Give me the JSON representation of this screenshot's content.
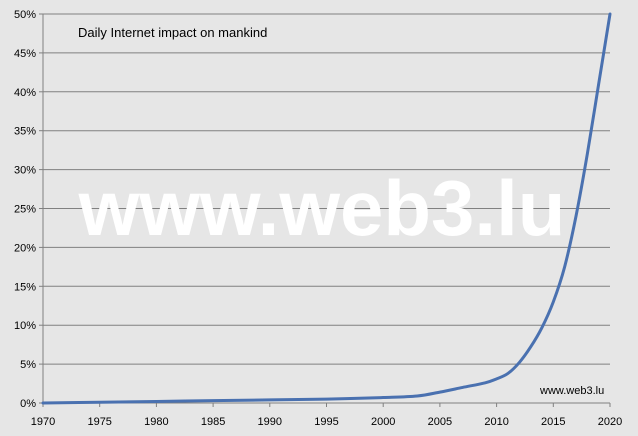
{
  "chart_data": {
    "type": "line",
    "title": "Daily Internet impact on mankind",
    "watermark": "www.web3.lu",
    "credit": "www.web3.lu",
    "xlim": [
      1970,
      2020
    ],
    "ylim": [
      0,
      50
    ],
    "x_ticks": [
      1970,
      1975,
      1980,
      1985,
      1990,
      1995,
      2000,
      2005,
      2010,
      2015,
      2020
    ],
    "y_ticks": [
      {
        "v": 0,
        "label": "0%"
      },
      {
        "v": 5,
        "label": "5%"
      },
      {
        "v": 10,
        "label": "10%"
      },
      {
        "v": 15,
        "label": "15%"
      },
      {
        "v": 20,
        "label": "20%"
      },
      {
        "v": 25,
        "label": "25%"
      },
      {
        "v": 30,
        "label": "30%"
      },
      {
        "v": 35,
        "label": "35%"
      },
      {
        "v": 40,
        "label": "40%"
      },
      {
        "v": 45,
        "label": "45%"
      },
      {
        "v": 50,
        "label": "50%"
      }
    ],
    "grid": true,
    "series": [
      {
        "color": "#4a71b0",
        "x": [
          1970,
          1975,
          1980,
          1985,
          1990,
          1995,
          2000,
          2003,
          2005,
          2007,
          2009,
          2010,
          2011,
          2012,
          2013,
          2014,
          2015,
          2016,
          2017,
          2018,
          2019,
          2020
        ],
        "values": [
          0,
          0.1,
          0.2,
          0.3,
          0.4,
          0.5,
          0.7,
          0.9,
          1.4,
          2.0,
          2.6,
          3.1,
          3.8,
          5.2,
          7.2,
          9.7,
          13,
          17.5,
          24,
          32,
          41,
          50
        ]
      }
    ]
  }
}
